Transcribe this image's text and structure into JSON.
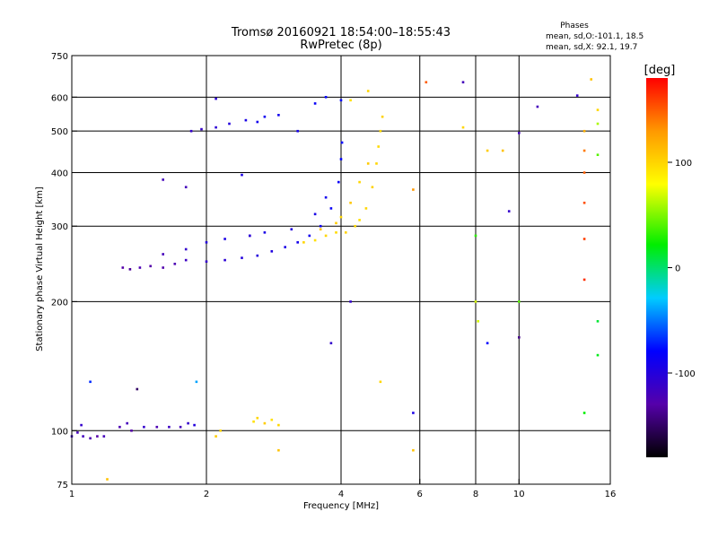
{
  "chart_data": {
    "type": "scatter",
    "title": "Tromsø 20160921 18:54:00–18:55:43",
    "subtitle": "RwPretec (8p)",
    "xlabel": "Frequency [MHz]",
    "ylabel": "Stationary phase Virtual Height [km]",
    "xscale": "log",
    "yscale": "log",
    "xlim": [
      1,
      16
    ],
    "ylim": [
      75,
      750
    ],
    "xticks": [
      1,
      2,
      4,
      6,
      8,
      10,
      16
    ],
    "yticks": [
      75,
      100,
      200,
      300,
      400,
      500,
      600,
      750
    ],
    "grid": true,
    "phases_box": {
      "title": "Phases",
      "line_o": "mean, sd,O:-101.1, 18.5",
      "line_x": "mean, sd,X:  92.1, 19.7"
    },
    "colorbar": {
      "label": "[deg]",
      "ticks": [
        "100",
        "0",
        "-100"
      ],
      "tick_values": [
        100,
        0,
        -100
      ],
      "range": [
        -180,
        180
      ],
      "colormap": "rainbow"
    },
    "series": [
      {
        "points": [
          [
            1.0,
            97,
            -115
          ],
          [
            1.03,
            99,
            -120
          ],
          [
            1.06,
            97,
            -118
          ],
          [
            1.1,
            96,
            -125
          ],
          [
            1.14,
            97,
            -130
          ],
          [
            1.18,
            97,
            -120
          ],
          [
            1.05,
            103,
            -110
          ],
          [
            1.28,
            102,
            -125
          ],
          [
            1.33,
            104,
            -120
          ],
          [
            1.36,
            100,
            -130
          ],
          [
            1.45,
            102,
            -110
          ],
          [
            1.55,
            102,
            -125
          ],
          [
            1.65,
            102,
            -115
          ],
          [
            1.75,
            102,
            -120
          ],
          [
            1.82,
            104,
            -110
          ],
          [
            1.88,
            103,
            -100
          ],
          [
            1.3,
            240,
            -130
          ],
          [
            1.35,
            238,
            -135
          ],
          [
            1.42,
            240,
            -125
          ],
          [
            1.5,
            242,
            -130
          ],
          [
            1.6,
            240,
            -128
          ],
          [
            1.7,
            245,
            -125
          ],
          [
            1.8,
            250,
            -115
          ],
          [
            2.0,
            248,
            -110
          ],
          [
            2.2,
            250,
            -105
          ],
          [
            2.4,
            253,
            -100
          ],
          [
            2.6,
            256,
            -100
          ],
          [
            2.8,
            262,
            -98
          ],
          [
            3.0,
            268,
            -95
          ],
          [
            3.2,
            275,
            -92
          ],
          [
            3.4,
            285,
            -90
          ],
          [
            3.6,
            300,
            -88
          ],
          [
            3.8,
            330,
            -85
          ],
          [
            3.95,
            380,
            -85
          ],
          [
            4.0,
            430,
            -80
          ],
          [
            4.02,
            470,
            -80
          ],
          [
            1.6,
            258,
            -120
          ],
          [
            1.8,
            265,
            -110
          ],
          [
            2.0,
            275,
            -100
          ],
          [
            2.2,
            280,
            -95
          ],
          [
            2.5,
            285,
            -100
          ],
          [
            2.7,
            290,
            -95
          ],
          [
            3.1,
            295,
            -100
          ],
          [
            3.5,
            320,
            -95
          ],
          [
            3.7,
            350,
            -90
          ],
          [
            1.6,
            385,
            -120
          ],
          [
            1.8,
            370,
            -120
          ],
          [
            2.4,
            395,
            -95
          ],
          [
            1.85,
            500,
            -110
          ],
          [
            1.95,
            505,
            -112
          ],
          [
            2.1,
            510,
            -105
          ],
          [
            2.25,
            520,
            -100
          ],
          [
            2.45,
            530,
            -95
          ],
          [
            2.6,
            525,
            -90
          ],
          [
            2.7,
            540,
            -88
          ],
          [
            2.9,
            545,
            -90
          ],
          [
            3.2,
            500,
            -92
          ],
          [
            3.5,
            580,
            -85
          ],
          [
            3.7,
            600,
            -80
          ],
          [
            4.0,
            590,
            -78
          ],
          [
            2.1,
            595,
            -105
          ],
          [
            1.1,
            130,
            -70
          ],
          [
            1.4,
            125,
            -150
          ],
          [
            1.9,
            130,
            -40
          ],
          [
            3.8,
            160,
            -110
          ],
          [
            2.5,
            285,
            -105
          ],
          [
            4.2,
            200,
            -110
          ],
          [
            5.8,
            110,
            -95
          ],
          [
            8.5,
            160,
            -80
          ],
          [
            9.5,
            325,
            -110
          ],
          [
            10,
            495,
            -120
          ],
          [
            10,
            165,
            -140
          ],
          [
            11,
            570,
            -120
          ],
          [
            13.5,
            605,
            -110
          ],
          [
            7.5,
            650,
            -120
          ]
        ]
      },
      {
        "points": [
          [
            2.1,
            97,
            105
          ],
          [
            2.15,
            100,
            100
          ],
          [
            2.55,
            105,
            95
          ],
          [
            2.6,
            107,
            100
          ],
          [
            2.7,
            104,
            105
          ],
          [
            2.8,
            106,
            95
          ],
          [
            2.9,
            103,
            100
          ],
          [
            3.3,
            275,
            100
          ],
          [
            3.5,
            278,
            95
          ],
          [
            3.7,
            285,
            100
          ],
          [
            3.9,
            290,
            98
          ],
          [
            4.1,
            290,
            102
          ],
          [
            4.3,
            300,
            100
          ],
          [
            4.4,
            310,
            95
          ],
          [
            4.55,
            330,
            100
          ],
          [
            4.7,
            370,
            102
          ],
          [
            4.8,
            420,
            100
          ],
          [
            4.85,
            460,
            98
          ],
          [
            4.9,
            500,
            100
          ],
          [
            4.95,
            540,
            102
          ],
          [
            3.6,
            295,
            110
          ],
          [
            3.9,
            305,
            105
          ],
          [
            4.0,
            315,
            100
          ],
          [
            4.2,
            340,
            108
          ],
          [
            4.4,
            380,
            100
          ],
          [
            4.6,
            420,
            106
          ],
          [
            4.2,
            590,
            95
          ],
          [
            4.6,
            620,
            100
          ],
          [
            4.9,
            130,
            100
          ],
          [
            5.8,
            90,
            110
          ],
          [
            5.8,
            365,
            130
          ],
          [
            6.2,
            650,
            150
          ],
          [
            7.5,
            510,
            100
          ],
          [
            8.5,
            450,
            105
          ],
          [
            9.2,
            450,
            110
          ],
          [
            8,
            285,
            30
          ],
          [
            8,
            200,
            70
          ],
          [
            8.1,
            180,
            70
          ],
          [
            10,
            200,
            40
          ],
          [
            14,
            500,
            120
          ],
          [
            14,
            450,
            140
          ],
          [
            14,
            400,
            150
          ],
          [
            14,
            340,
            155
          ],
          [
            14,
            280,
            160
          ],
          [
            14,
            225,
            165
          ],
          [
            14.5,
            660,
            110
          ],
          [
            15,
            560,
            100
          ],
          [
            15,
            520,
            60
          ],
          [
            15,
            440,
            40
          ],
          [
            14,
            110,
            20
          ],
          [
            15,
            180,
            10
          ],
          [
            15,
            150,
            15
          ],
          [
            1.2,
            77,
            110
          ],
          [
            2.9,
            90,
            110
          ]
        ]
      }
    ]
  }
}
